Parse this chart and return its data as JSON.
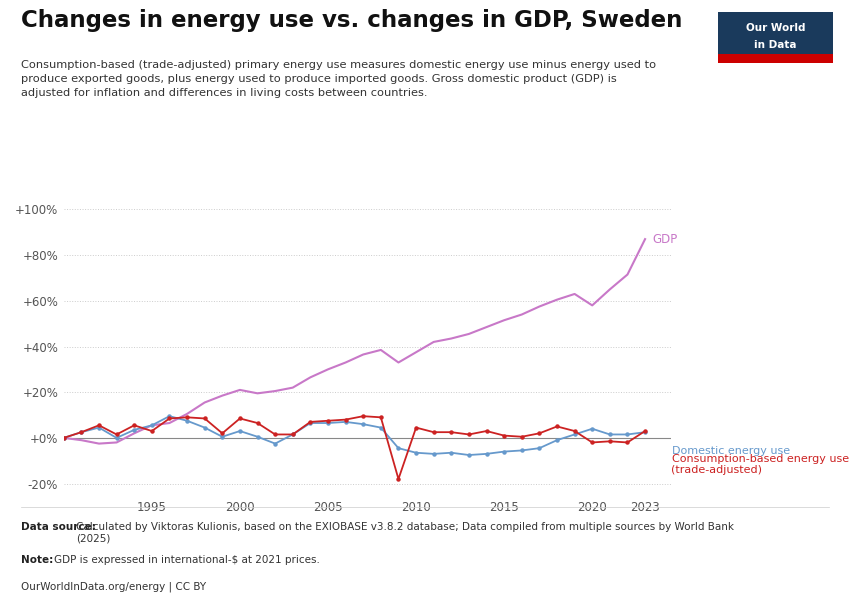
{
  "title": "Changes in energy use vs. changes in GDP, Sweden",
  "subtitle": "Consumption-based (trade-adjusted) primary energy use measures domestic energy use minus energy used to\nproduce exported goods, plus energy used to produce imported goods. Gross domestic product (GDP) is\nadjusted for inflation and differences in living costs between countries.",
  "datasource_bold": "Data source: ",
  "datasource_normal": "Calculated by Viktoras Kulionis, based on the EXIOBASE v3.8.2 database; Data compiled from multiple sources by World Bank\n(2025)",
  "note_bold": "Note: ",
  "note_normal": "GDP is expressed in international-$ at 2021 prices.",
  "footer": "OurWorldInData.org/energy | CC BY",
  "years_gdp": [
    1990,
    1991,
    1992,
    1993,
    1994,
    1995,
    1996,
    1997,
    1998,
    1999,
    2000,
    2001,
    2002,
    2003,
    2004,
    2005,
    2006,
    2007,
    2008,
    2009,
    2010,
    2011,
    2012,
    2013,
    2014,
    2015,
    2016,
    2017,
    2018,
    2019,
    2020,
    2021,
    2022,
    2023
  ],
  "gdp": [
    0,
    -1.0,
    -2.5,
    -2.0,
    2.0,
    5.5,
    6.5,
    10.5,
    15.5,
    18.5,
    21.0,
    19.5,
    20.5,
    22.0,
    26.5,
    30.0,
    33.0,
    36.5,
    38.5,
    33.0,
    37.5,
    42.0,
    43.5,
    45.5,
    48.5,
    51.5,
    54.0,
    57.5,
    60.5,
    63.0,
    58.0,
    65.0,
    71.5,
    87.0
  ],
  "years_domestic": [
    1990,
    1991,
    1992,
    1993,
    1994,
    1995,
    1996,
    1997,
    1998,
    1999,
    2000,
    2001,
    2002,
    2003,
    2004,
    2005,
    2006,
    2007,
    2008,
    2009,
    2010,
    2011,
    2012,
    2013,
    2014,
    2015,
    2016,
    2017,
    2018,
    2019,
    2020,
    2021,
    2022,
    2023
  ],
  "domestic_energy": [
    0,
    2.5,
    4.5,
    0.0,
    3.5,
    5.5,
    9.5,
    7.5,
    4.5,
    0.5,
    3.0,
    0.5,
    -2.5,
    1.5,
    6.5,
    6.5,
    7.0,
    6.0,
    4.5,
    -4.5,
    -6.5,
    -7.0,
    -6.5,
    -7.5,
    -7.0,
    -6.0,
    -5.5,
    -4.5,
    -1.0,
    1.5,
    4.0,
    1.5,
    1.5,
    2.5
  ],
  "years_consumption": [
    1990,
    1991,
    1992,
    1993,
    1994,
    1995,
    1996,
    1997,
    1998,
    1999,
    2000,
    2001,
    2002,
    2003,
    2004,
    2005,
    2006,
    2007,
    2008,
    2009,
    2010,
    2011,
    2012,
    2013,
    2014,
    2015,
    2016,
    2017,
    2018,
    2019,
    2020,
    2021,
    2022,
    2023
  ],
  "consumption_energy": [
    0,
    2.5,
    5.5,
    1.5,
    5.5,
    3.0,
    8.5,
    9.0,
    8.5,
    2.0,
    8.5,
    6.5,
    1.5,
    1.5,
    7.0,
    7.5,
    8.0,
    9.5,
    9.0,
    -18.0,
    4.5,
    2.5,
    2.5,
    1.5,
    3.0,
    1.0,
    0.5,
    2.0,
    5.0,
    3.0,
    -2.0,
    -1.5,
    -2.0,
    3.0
  ],
  "gdp_color": "#c878c8",
  "domestic_color": "#6699cc",
  "consumption_color": "#cc2222",
  "background_color": "#ffffff",
  "ylim": [
    -25,
    105
  ],
  "yticks": [
    -20,
    0,
    20,
    40,
    60,
    80,
    100
  ],
  "ytick_labels": [
    "-20%",
    "+0%",
    "+20%",
    "+40%",
    "+60%",
    "+80%",
    "+100%"
  ],
  "xticks": [
    1995,
    2000,
    2005,
    2010,
    2015,
    2020,
    2023
  ],
  "xlim": [
    1990,
    2024.5
  ]
}
